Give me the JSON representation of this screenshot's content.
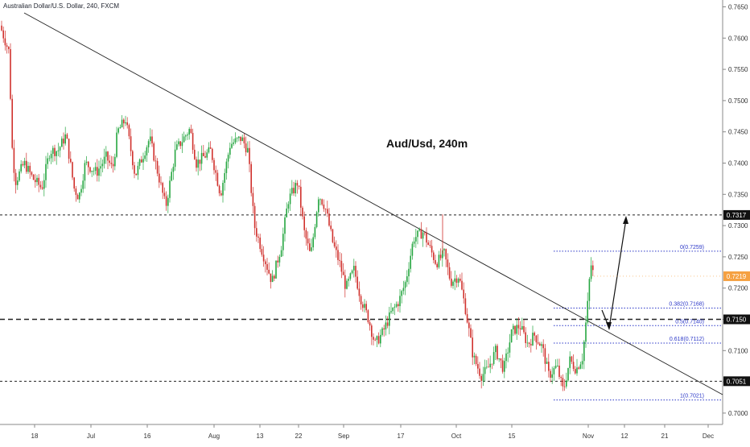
{
  "header": {
    "instrument": "Australian Dollar/U.S. Dollar, 240, FXCM"
  },
  "chart_data": {
    "type": "candlestick",
    "title": "Aud/Usd, 240m",
    "ylim": [
      0.6975,
      0.7665
    ],
    "y_ticks": [
      "0.7650",
      "0.7600",
      "0.7550",
      "0.7500",
      "0.7450",
      "0.7400",
      "0.7350",
      "0.7300",
      "0.7250",
      "0.7200",
      "0.7150",
      "0.7100",
      "0.7050",
      "0.7000"
    ],
    "x_ticks": [
      "18",
      "Jul",
      "16",
      "Aug",
      "13",
      "22",
      "Sep",
      "17",
      "Oct",
      "15",
      "Nov",
      "12",
      "21",
      "Dec"
    ],
    "last_price_label": "0.7219",
    "horizontal_levels": [
      {
        "label": "0.7317",
        "value": 0.7317,
        "style": "dashed-thin"
      },
      {
        "label": "0.7150",
        "value": 0.715,
        "style": "dashed-thick"
      },
      {
        "label": "0.7051",
        "value": 0.7051,
        "style": "dashed-thin"
      }
    ],
    "fib_levels": [
      {
        "label": "0(0.7259)",
        "value": 0.7259
      },
      {
        "label": "0.382(0.7168)",
        "value": 0.7168
      },
      {
        "label": "0.5(0.7140)",
        "value": 0.714
      },
      {
        "label": "0.618(0.7112)",
        "value": 0.7112
      },
      {
        "label": "1(0.7021)",
        "value": 0.7021
      }
    ],
    "trendline": "descending",
    "projection": "dip to ~0.7150 then rally to ~0.7317",
    "colors": {
      "up": "#26a641",
      "down": "#d0312d",
      "fib": "#2c38c8",
      "last": "#f5a142"
    },
    "price_path": [
      [
        0,
        0.762
      ],
      [
        12,
        0.7575
      ],
      [
        14,
        0.744
      ],
      [
        19,
        0.737
      ],
      [
        30,
        0.74
      ],
      [
        41,
        0.7375
      ],
      [
        52,
        0.736
      ],
      [
        62,
        0.742
      ],
      [
        72,
        0.742
      ],
      [
        82,
        0.7445
      ],
      [
        92,
        0.736
      ],
      [
        98,
        0.7345
      ],
      [
        106,
        0.74
      ],
      [
        120,
        0.7385
      ],
      [
        132,
        0.741
      ],
      [
        140,
        0.739
      ],
      [
        146,
        0.745
      ],
      [
        156,
        0.747
      ],
      [
        168,
        0.738
      ],
      [
        186,
        0.744
      ],
      [
        196,
        0.7385
      ],
      [
        206,
        0.733
      ],
      [
        218,
        0.742
      ],
      [
        236,
        0.7455
      ],
      [
        244,
        0.74
      ],
      [
        262,
        0.742
      ],
      [
        274,
        0.735
      ],
      [
        286,
        0.743
      ],
      [
        300,
        0.744
      ],
      [
        308,
        0.742
      ],
      [
        316,
        0.73
      ],
      [
        328,
        0.725
      ],
      [
        338,
        0.721
      ],
      [
        350,
        0.727
      ],
      [
        358,
        0.734
      ],
      [
        370,
        0.737
      ],
      [
        378,
        0.729
      ],
      [
        386,
        0.725
      ],
      [
        396,
        0.735
      ],
      [
        404,
        0.733
      ],
      [
        414,
        0.727
      ],
      [
        422,
        0.724
      ],
      [
        430,
        0.72
      ],
      [
        440,
        0.723
      ],
      [
        448,
        0.7185
      ],
      [
        458,
        0.715
      ],
      [
        466,
        0.711
      ],
      [
        476,
        0.713
      ],
      [
        486,
        0.716
      ],
      [
        496,
        0.718
      ],
      [
        504,
        0.721
      ],
      [
        514,
        0.728
      ],
      [
        526,
        0.729
      ],
      [
        532,
        0.727
      ],
      [
        542,
        0.724
      ],
      [
        552,
        0.7255
      ],
      [
        560,
        0.721
      ],
      [
        570,
        0.722
      ],
      [
        578,
        0.717
      ],
      [
        588,
        0.709
      ],
      [
        598,
        0.706
      ],
      [
        606,
        0.707
      ],
      [
        616,
        0.71
      ],
      [
        626,
        0.707
      ],
      [
        636,
        0.713
      ],
      [
        646,
        0.714
      ],
      [
        656,
        0.711
      ],
      [
        664,
        0.7125
      ],
      [
        674,
        0.7105
      ],
      [
        682,
        0.706
      ],
      [
        692,
        0.7075
      ],
      [
        700,
        0.7035
      ],
      [
        708,
        0.7085
      ],
      [
        716,
        0.707
      ],
      [
        724,
        0.709
      ],
      [
        730,
        0.717
      ],
      [
        734,
        0.724
      ],
      [
        738,
        0.7219
      ]
    ]
  }
}
